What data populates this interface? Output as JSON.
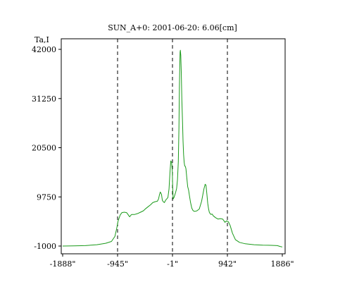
{
  "chart_data": {
    "type": "line",
    "title": "SUN_A+0: 2001-06-20: 6.06[cm]",
    "ylabel": "Ta,I",
    "xlabel": "",
    "xlim": [
      -1888,
      1886
    ],
    "ylim": [
      -1000,
      42000
    ],
    "x_ticks": [
      {
        "value": -1888,
        "label": "-1888\""
      },
      {
        "value": -945,
        "label": "-945\""
      },
      {
        "value": -1,
        "label": "-1\""
      },
      {
        "value": 942,
        "label": "942\""
      },
      {
        "value": 1886,
        "label": "1886\""
      }
    ],
    "y_ticks": [
      {
        "value": 42000,
        "label": "42000"
      },
      {
        "value": 31250,
        "label": "31250"
      },
      {
        "value": 20500,
        "label": "20500"
      },
      {
        "value": 9750,
        "label": "9750"
      },
      {
        "value": -1000,
        "label": "-1000"
      }
    ],
    "vertical_dashed_lines": [
      -945,
      -1,
      942
    ],
    "grid": false,
    "legend": "none",
    "series": [
      {
        "color": "#1a9a1a",
        "x": [
          -1888,
          -1700,
          -1500,
          -1300,
          -1150,
          -1050,
          -990,
          -960,
          -935,
          -900,
          -870,
          -830,
          -790,
          -765,
          -750,
          -735,
          -720,
          -700,
          -650,
          -600,
          -550,
          -500,
          -460,
          -420,
          -380,
          -340,
          -300,
          -260,
          -240,
          -225,
          -210,
          -190,
          -175,
          -160,
          -140,
          -120,
          -100,
          -80,
          -60,
          -45,
          -30,
          -15,
          -5,
          0,
          10,
          25,
          40,
          55,
          70,
          85,
          100,
          110,
          118,
          125,
          130,
          135,
          142,
          150,
          160,
          172,
          180,
          190,
          200,
          210,
          220,
          230,
          245,
          260,
          275,
          290,
          310,
          330,
          350,
          370,
          390,
          420,
          460,
          500,
          540,
          560,
          575,
          590,
          605,
          620,
          632,
          645,
          660,
          680,
          700,
          740,
          780,
          820,
          860,
          880,
          900,
          930,
          960,
          990,
          1030,
          1080,
          1150,
          1250,
          1400,
          1550,
          1700,
          1800,
          1850,
          1886
        ],
        "y": [
          -1000,
          -950,
          -900,
          -700,
          -400,
          0,
          1100,
          2800,
          4500,
          5800,
          6300,
          6400,
          6300,
          5900,
          5600,
          5400,
          5700,
          5900,
          5900,
          6100,
          6400,
          6700,
          7200,
          7600,
          8000,
          8500,
          8700,
          8800,
          9300,
          10200,
          10800,
          10300,
          9000,
          8700,
          8500,
          9000,
          9300,
          9600,
          11500,
          15000,
          17600,
          17300,
          15500,
          13000,
          9300,
          9600,
          10200,
          10800,
          11600,
          13500,
          17500,
          25000,
          33500,
          38500,
          41400,
          41800,
          40700,
          37000,
          31000,
          26000,
          22000,
          19000,
          17300,
          16500,
          16400,
          15900,
          14000,
          12000,
          11300,
          10000,
          8500,
          7300,
          6800,
          6600,
          6600,
          6700,
          7100,
          8800,
          11500,
          12500,
          12300,
          10300,
          8300,
          7100,
          6400,
          6100,
          5900,
          6000,
          5600,
          5200,
          4900,
          5000,
          4900,
          4600,
          4200,
          4500,
          4300,
          3500,
          1800,
          400,
          -200,
          -500,
          -700,
          -800,
          -850,
          -900,
          -1100,
          -1200
        ]
      }
    ]
  }
}
